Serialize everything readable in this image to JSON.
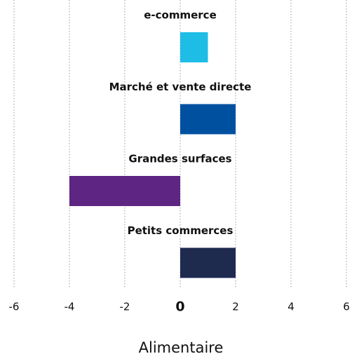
{
  "chart_data": {
    "type": "bar",
    "orientation": "horizontal",
    "categories": [
      "e-commerce",
      "Marché et vente directe",
      "Grandes surfaces",
      "Petits commerces"
    ],
    "values": [
      1,
      2,
      -4,
      2
    ],
    "colors": [
      "#1dbde6",
      "#0050a0",
      "#5e2583",
      "#1f2a4f"
    ],
    "xlim": [
      -6,
      6
    ],
    "xticks": [
      -6,
      -4,
      -2,
      0,
      2,
      4,
      6
    ],
    "xlabel": "Alimentaire",
    "grid": true
  }
}
